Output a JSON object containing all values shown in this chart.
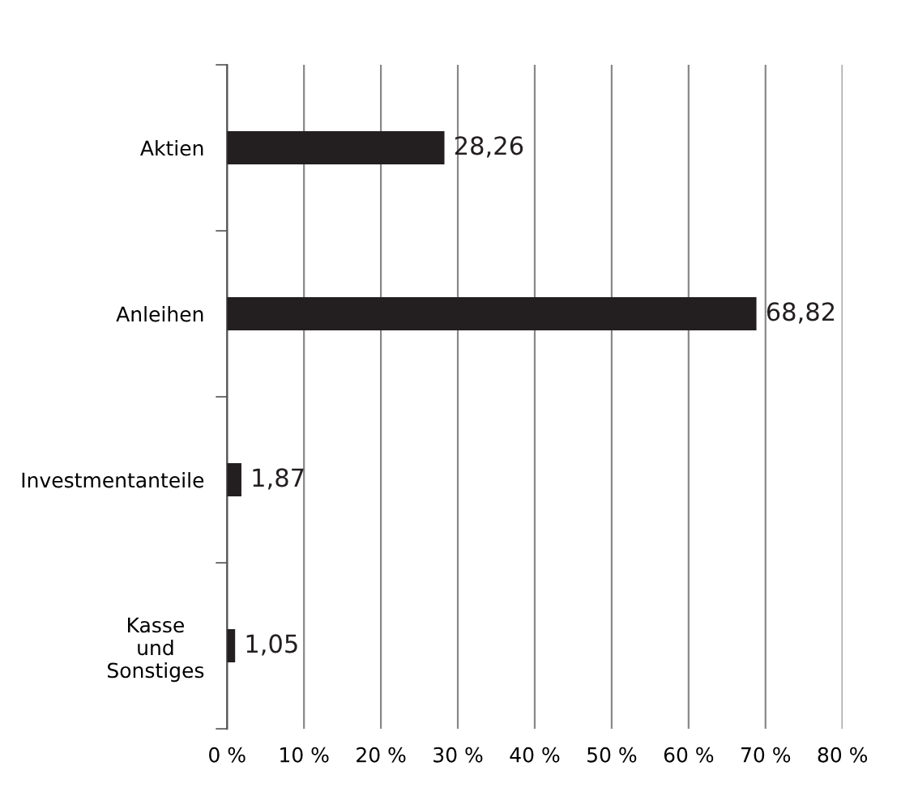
{
  "chart_data": {
    "type": "bar",
    "orientation": "horizontal",
    "categories": [
      "Aktien",
      "Anleihen",
      "Investmentanteile",
      "Kasse\nund\nSonstiges"
    ],
    "values": [
      28.26,
      68.82,
      1.87,
      1.05
    ],
    "value_labels": [
      "28,26",
      "68,82",
      "1,87",
      "1,05"
    ],
    "color": "#231f20",
    "xlim": [
      0,
      80
    ],
    "xticks": [
      {
        "value": 0,
        "label": "0 %"
      },
      {
        "value": 10,
        "label": "10 %"
      },
      {
        "value": 20,
        "label": "20 %"
      },
      {
        "value": 30,
        "label": "30 %"
      },
      {
        "value": 40,
        "label": "40 %"
      },
      {
        "value": 50,
        "label": "50 %"
      },
      {
        "value": 60,
        "label": "60 %"
      },
      {
        "value": 70,
        "label": "70 %"
      },
      {
        "value": 80,
        "label": "80 %"
      }
    ],
    "grid": "x"
  }
}
